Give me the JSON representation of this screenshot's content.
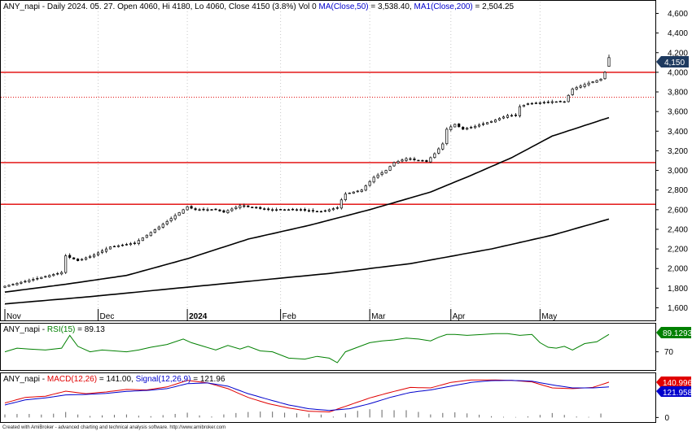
{
  "header": {
    "main_prefix": "ANY_napi - Daily 2024. 05. 27. Open 4060, Hi 4180, Lo 4060, Close 4150 (3.8%) Vol 0 ",
    "main_ma50": "MA(Close,50)",
    "main_ma50_value": " = 3,538.40, ",
    "main_ma200": "MA1(Close,200)",
    "main_ma200_value": " = 2,504.25",
    "rsi_prefix": "ANY_napi - ",
    "rsi_label": "RSI(15)",
    "rsi_value": " = 89.13",
    "macd_prefix": "ANY_napi - ",
    "macd_label": "MACD(12,26)",
    "macd_value": " = 141.00, ",
    "signal_label": "Signal(12,26,9)",
    "signal_value": " = 121.96"
  },
  "badges": {
    "price": "4,150",
    "rsi": "89.1293",
    "macd": "140.996",
    "signal": "121.958"
  },
  "footer": "Created with AmiBroker - advanced charting and technical analysis software. http://www.amibroker.com",
  "colors": {
    "bull": "#ffffff",
    "bear": "#000000",
    "ma50": "#000000",
    "ma200": "#000000",
    "resistance": "#e00000",
    "rsi": "#008000",
    "macd": "#e00000",
    "signal": "#0000cc",
    "price_badge": "#1e3a5f",
    "rsi_badge": "#008000"
  },
  "chart_data": [
    {
      "type": "candlestick",
      "title": "ANY_napi - Daily",
      "x_axis": {
        "labels": [
          "Nov",
          "Dec",
          "2024",
          "Feb",
          "Mar",
          "Apr",
          "May"
        ],
        "label_index": [
          0,
          23,
          45,
          68,
          90,
          110,
          132
        ]
      },
      "y_axis": {
        "ticks": [
          1600,
          1800,
          2000,
          2200,
          2400,
          2600,
          2800,
          3000,
          3200,
          3400,
          3600,
          3800,
          4000,
          4200,
          4400,
          4600
        ],
        "tick_labels": [
          "1,600",
          "1,800",
          "2,000",
          "2,200",
          "2,400",
          "2,600",
          "2,800",
          "3,000",
          "3,200",
          "3,400",
          "3,600",
          "3,800",
          "4,000",
          "4,200",
          "4,400",
          "4,600"
        ],
        "range": [
          1480,
          4720
        ]
      },
      "horizontal_lines": [
        {
          "value": 4000,
          "style": "solid"
        },
        {
          "value": 3745,
          "style": "dotted"
        },
        {
          "value": 3080,
          "style": "solid"
        },
        {
          "value": 2655,
          "style": "solid"
        }
      ],
      "close_anchors": [
        [
          0,
          1820
        ],
        [
          5,
          1870
        ],
        [
          10,
          1920
        ],
        [
          14,
          1960
        ],
        [
          15,
          2130
        ],
        [
          18,
          2080
        ],
        [
          22,
          2140
        ],
        [
          26,
          2220
        ],
        [
          32,
          2260
        ],
        [
          35,
          2340
        ],
        [
          40,
          2480
        ],
        [
          44,
          2600
        ],
        [
          45,
          2630
        ],
        [
          47,
          2600
        ],
        [
          52,
          2600
        ],
        [
          54,
          2575
        ],
        [
          58,
          2640
        ],
        [
          65,
          2600
        ],
        [
          72,
          2600
        ],
        [
          78,
          2580
        ],
        [
          82,
          2620
        ],
        [
          83,
          2700
        ],
        [
          84,
          2760
        ],
        [
          88,
          2800
        ],
        [
          91,
          2930
        ],
        [
          94,
          3000
        ],
        [
          96,
          3080
        ],
        [
          99,
          3120
        ],
        [
          104,
          3090
        ],
        [
          106,
          3170
        ],
        [
          108,
          3270
        ],
        [
          109,
          3420
        ],
        [
          111,
          3470
        ],
        [
          113,
          3420
        ],
        [
          116,
          3450
        ],
        [
          120,
          3500
        ],
        [
          124,
          3560
        ],
        [
          126,
          3560
        ],
        [
          127,
          3650
        ],
        [
          129,
          3680
        ],
        [
          135,
          3700
        ],
        [
          138,
          3700
        ],
        [
          140,
          3830
        ],
        [
          144,
          3890
        ],
        [
          147,
          3930
        ],
        [
          148,
          4000
        ],
        [
          149,
          4150
        ]
      ],
      "ohlc_last": {
        "open": 4060,
        "high": 4180,
        "low": 4060,
        "close": 4150
      },
      "series": [
        {
          "name": "MA(Close,50)",
          "x": [
            0,
            15,
            30,
            45,
            60,
            75,
            90,
            105,
            115,
            125,
            135,
            149
          ],
          "values": [
            1760,
            1840,
            1930,
            2100,
            2300,
            2440,
            2600,
            2780,
            2950,
            3130,
            3350,
            3538.4
          ]
        },
        {
          "name": "MA1(Close,200)",
          "x": [
            0,
            20,
            40,
            60,
            80,
            100,
            120,
            135,
            149
          ],
          "values": [
            1640,
            1710,
            1790,
            1870,
            1950,
            2050,
            2200,
            2340,
            2504.25
          ]
        }
      ]
    },
    {
      "type": "line",
      "title": "RSI(15)",
      "y_axis": {
        "ticks": [
          70
        ],
        "range": [
          50,
          100
        ]
      },
      "series": [
        {
          "name": "RSI(15)",
          "x": [
            0,
            3,
            6,
            10,
            14,
            16,
            18,
            21,
            24,
            27,
            30,
            33,
            36,
            40,
            44,
            46,
            49,
            52,
            55,
            58,
            60,
            63,
            66,
            70,
            74,
            77,
            80,
            82,
            84,
            87,
            90,
            93,
            96,
            99,
            102,
            105,
            107,
            109,
            111,
            114,
            118,
            121,
            124,
            127,
            130,
            132,
            134,
            136,
            138,
            140,
            143,
            146,
            149
          ],
          "values": [
            70,
            74,
            73,
            72,
            74,
            88,
            76,
            70,
            72,
            71,
            70,
            72,
            75,
            78,
            84,
            80,
            76,
            72,
            77,
            73,
            76,
            71,
            70,
            63,
            62,
            65,
            63,
            58,
            70,
            75,
            80,
            82,
            83,
            85,
            84,
            82,
            86,
            89,
            89,
            88,
            89,
            90,
            90,
            88,
            89,
            80,
            75,
            74,
            76,
            72,
            79,
            81,
            89.13
          ]
        }
      ]
    },
    {
      "type": "line",
      "title": "MACD(12,26)",
      "y_axis": {
        "ticks": [
          0
        ],
        "range": [
          -15,
          170
        ]
      },
      "series": [
        {
          "name": "MACD(12,26)",
          "x": [
            0,
            5,
            10,
            15,
            20,
            25,
            30,
            35,
            40,
            45,
            50,
            55,
            60,
            65,
            70,
            75,
            80,
            85,
            90,
            95,
            100,
            105,
            110,
            115,
            120,
            125,
            130,
            135,
            140,
            145,
            149
          ],
          "values": [
            58,
            80,
            85,
            105,
            95,
            102,
            112,
            110,
            122,
            148,
            138,
            115,
            80,
            55,
            38,
            25,
            22,
            50,
            78,
            100,
            120,
            118,
            140,
            150,
            150,
            148,
            142,
            118,
            115,
            120,
            141
          ]
        },
        {
          "name": "Signal(12,26,9)",
          "x": [
            0,
            5,
            10,
            15,
            20,
            25,
            30,
            35,
            40,
            45,
            50,
            55,
            60,
            65,
            70,
            75,
            80,
            85,
            90,
            95,
            100,
            105,
            110,
            115,
            120,
            125,
            130,
            135,
            140,
            145,
            149
          ],
          "values": [
            50,
            70,
            78,
            90,
            92,
            96,
            104,
            108,
            115,
            135,
            138,
            125,
            95,
            72,
            50,
            35,
            28,
            35,
            55,
            80,
            100,
            110,
            125,
            140,
            147,
            148,
            145,
            130,
            118,
            118,
            122
          ]
        }
      ]
    }
  ]
}
